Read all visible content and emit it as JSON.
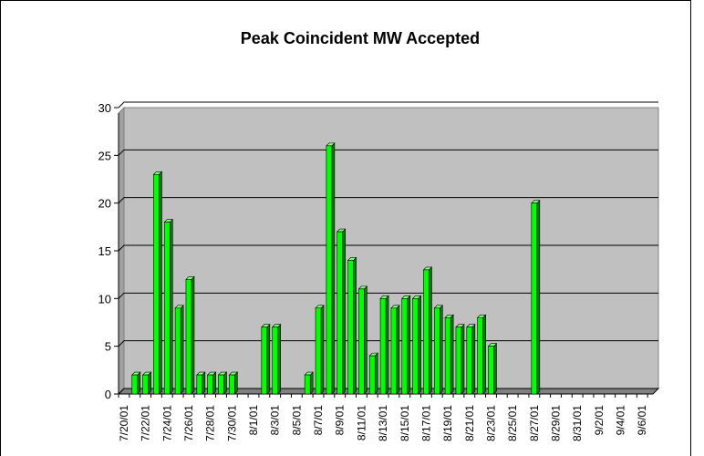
{
  "chart_data": {
    "type": "bar",
    "title": "Peak Coincident MW Accepted",
    "categories": [
      "7/20/01",
      null,
      "7/22/01",
      null,
      "7/24/01",
      null,
      "7/26/01",
      null,
      "7/28/01",
      null,
      "7/30/01",
      null,
      "8/1/01",
      null,
      "8/3/01",
      null,
      "8/5/01",
      null,
      "8/7/01",
      null,
      "8/9/01",
      null,
      "8/11/01",
      null,
      "8/13/01",
      null,
      "8/15/01",
      null,
      "8/17/01",
      null,
      "8/19/01",
      null,
      "8/21/01",
      null,
      "8/23/01",
      null,
      "8/25/01",
      null,
      "8/27/01",
      null,
      "8/29/01",
      null,
      "8/31/01",
      null,
      "9/2/01",
      null,
      "9/4/01",
      null,
      "9/6/01",
      null
    ],
    "values": [
      0,
      2,
      2,
      23,
      18,
      9,
      12,
      2,
      2,
      2,
      2,
      0,
      0,
      7,
      7,
      0,
      0,
      2,
      9,
      26,
      17,
      14,
      11,
      4,
      10,
      9,
      10,
      10,
      13,
      9,
      8,
      7,
      7,
      8,
      5,
      0,
      0,
      0,
      20,
      0,
      0,
      0,
      0,
      0,
      0,
      0,
      0,
      0,
      0,
      0
    ],
    "color": "#00ff00",
    "background": "#c0c0c0",
    "ylim": [
      0,
      30
    ],
    "yticks": [
      0,
      5,
      10,
      15,
      20,
      25,
      30
    ],
    "grid": true
  }
}
